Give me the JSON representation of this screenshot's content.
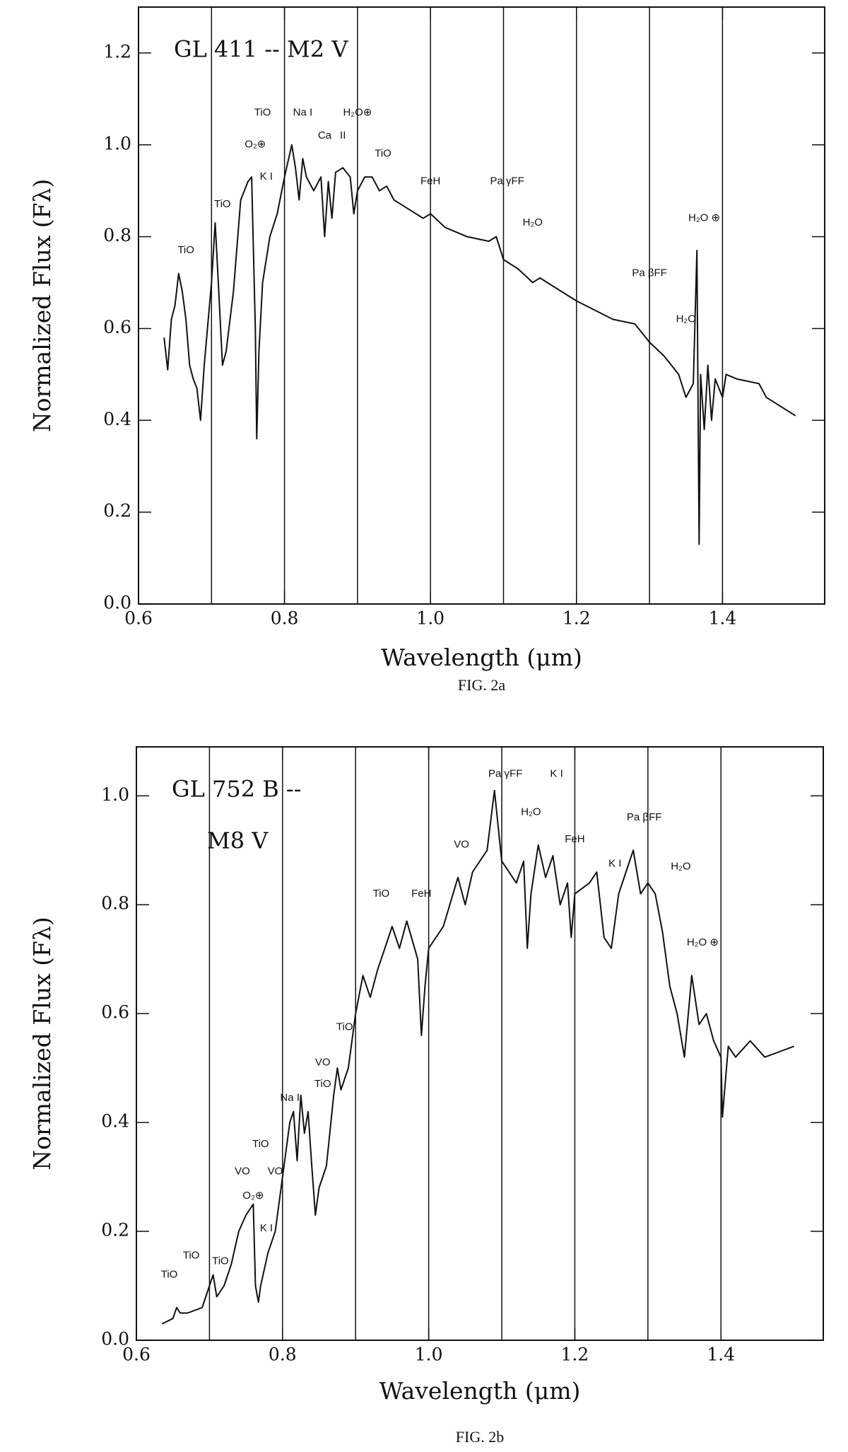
{
  "chart_data": [
    {
      "type": "line",
      "title": "GL 411 -- M2 V",
      "xlabel": "Wavelength (μm)",
      "ylabel": "Normalized Flux (Fλ)",
      "caption": "FIG. 2a",
      "xlim": [
        0.6,
        1.54
      ],
      "ylim": [
        0,
        1.3
      ],
      "xticks": [
        0.6,
        0.8,
        {
          "value": 1.0,
          "label": "1.0"
        },
        1.2,
        1.4
      ],
      "yticks": [
        {
          "value": 0,
          "label": "0.0"
        },
        0.2,
        0.4,
        0.6,
        0.8,
        {
          "value": 1.0,
          "label": "1.0"
        },
        1.2
      ],
      "xgrid": [
        0.7,
        0.8,
        0.9,
        1.0,
        1.1,
        1.2,
        1.3,
        1.4
      ],
      "series": [
        {
          "name": "GL 411",
          "color": "#111111",
          "x": [
            0.635,
            0.64,
            0.645,
            0.65,
            0.655,
            0.66,
            0.665,
            0.67,
            0.675,
            0.68,
            0.685,
            0.69,
            0.7,
            0.705,
            0.71,
            0.715,
            0.72,
            0.73,
            0.74,
            0.75,
            0.755,
            0.76,
            0.762,
            0.765,
            0.77,
            0.78,
            0.79,
            0.8,
            0.81,
            0.815,
            0.82,
            0.825,
            0.83,
            0.84,
            0.85,
            0.855,
            0.86,
            0.865,
            0.87,
            0.88,
            0.89,
            0.895,
            0.9,
            0.91,
            0.92,
            0.93,
            0.94,
            0.95,
            0.97,
            0.99,
            1.0,
            1.02,
            1.05,
            1.08,
            1.09,
            1.1,
            1.12,
            1.14,
            1.15,
            1.2,
            1.25,
            1.28,
            1.3,
            1.32,
            1.34,
            1.35,
            1.36,
            1.365,
            1.368,
            1.37,
            1.375,
            1.38,
            1.385,
            1.39,
            1.4,
            1.405,
            1.42,
            1.45,
            1.46,
            1.48,
            1.5
          ],
          "values": [
            0.58,
            0.51,
            0.62,
            0.65,
            0.72,
            0.68,
            0.62,
            0.52,
            0.49,
            0.47,
            0.4,
            0.52,
            0.7,
            0.83,
            0.68,
            0.52,
            0.55,
            0.68,
            0.88,
            0.92,
            0.93,
            0.6,
            0.36,
            0.55,
            0.7,
            0.8,
            0.85,
            0.93,
            1.0,
            0.95,
            0.88,
            0.97,
            0.93,
            0.9,
            0.93,
            0.8,
            0.92,
            0.84,
            0.94,
            0.95,
            0.93,
            0.85,
            0.9,
            0.93,
            0.93,
            0.9,
            0.91,
            0.88,
            0.86,
            0.84,
            0.85,
            0.82,
            0.8,
            0.79,
            0.8,
            0.75,
            0.73,
            0.7,
            0.71,
            0.66,
            0.62,
            0.61,
            0.57,
            0.54,
            0.5,
            0.45,
            0.48,
            0.77,
            0.13,
            0.5,
            0.38,
            0.52,
            0.4,
            0.49,
            0.45,
            0.5,
            0.49,
            0.48,
            0.45,
            0.43,
            0.41
          ]
        }
      ],
      "annotations": [
        {
          "text": "TiO",
          "x": 0.665,
          "y": 0.77
        },
        {
          "text": "TiO",
          "x": 0.715,
          "y": 0.87
        },
        {
          "text": "K  I",
          "x": 0.775,
          "y": 0.93
        },
        {
          "text": "O₂⊕",
          "x": 0.76,
          "y": 1.0
        },
        {
          "text": "TiO",
          "x": 0.77,
          "y": 1.07
        },
        {
          "text": "Na  I",
          "x": 0.825,
          "y": 1.07
        },
        {
          "text": "Ca",
          "x": 0.855,
          "y": 1.02
        },
        {
          "text": "II",
          "x": 0.88,
          "y": 1.02
        },
        {
          "text": "H₂O⊕",
          "x": 0.9,
          "y": 1.07
        },
        {
          "text": "TiO",
          "x": 0.935,
          "y": 0.98
        },
        {
          "text": "FeH",
          "x": 1.0,
          "y": 0.92
        },
        {
          "text": "Pa  γFF",
          "x": 1.105,
          "y": 0.92
        },
        {
          "text": "H₂O",
          "x": 1.14,
          "y": 0.83
        },
        {
          "text": "Pa  βFF",
          "x": 1.3,
          "y": 0.72
        },
        {
          "text": "H₂O",
          "x": 1.35,
          "y": 0.62
        },
        {
          "text": "H₂O ⊕",
          "x": 1.375,
          "y": 0.84
        }
      ]
    },
    {
      "type": "line",
      "title": "GL 752 B --",
      "subtitle": "M8 V",
      "xlabel": "Wavelength (μm)",
      "ylabel": "Normalized Flux (Fλ)",
      "caption": "FIG. 2b",
      "xlim": [
        0.6,
        1.54
      ],
      "ylim": [
        0,
        1.09
      ],
      "xticks": [
        0.6,
        0.8,
        {
          "value": 1.0,
          "label": "1.0"
        },
        1.2,
        1.4
      ],
      "yticks": [
        {
          "value": 0,
          "label": "0.0"
        },
        0.2,
        0.4,
        0.6,
        0.8,
        {
          "value": 1.0,
          "label": "1.0"
        }
      ],
      "xgrid": [
        0.7,
        0.8,
        0.9,
        1.0,
        1.1,
        1.2,
        1.3,
        1.4
      ],
      "series": [
        {
          "name": "GL 752 B",
          "color": "#111111",
          "x": [
            0.635,
            0.65,
            0.655,
            0.66,
            0.67,
            0.69,
            0.7,
            0.705,
            0.71,
            0.72,
            0.73,
            0.74,
            0.75,
            0.76,
            0.763,
            0.767,
            0.77,
            0.78,
            0.79,
            0.8,
            0.81,
            0.815,
            0.82,
            0.825,
            0.83,
            0.835,
            0.84,
            0.845,
            0.85,
            0.86,
            0.87,
            0.875,
            0.88,
            0.89,
            0.9,
            0.91,
            0.92,
            0.93,
            0.94,
            0.95,
            0.96,
            0.97,
            0.985,
            0.99,
            0.995,
            1.0,
            1.02,
            1.04,
            1.05,
            1.06,
            1.08,
            1.09,
            1.1,
            1.11,
            1.12,
            1.13,
            1.135,
            1.14,
            1.15,
            1.16,
            1.17,
            1.18,
            1.19,
            1.195,
            1.2,
            1.22,
            1.23,
            1.24,
            1.25,
            1.26,
            1.27,
            1.28,
            1.29,
            1.3,
            1.31,
            1.32,
            1.33,
            1.34,
            1.35,
            1.36,
            1.37,
            1.38,
            1.39,
            1.4,
            1.402,
            1.41,
            1.42,
            1.44,
            1.46,
            1.48,
            1.5
          ],
          "values": [
            0.03,
            0.04,
            0.06,
            0.05,
            0.05,
            0.06,
            0.1,
            0.12,
            0.08,
            0.1,
            0.14,
            0.2,
            0.23,
            0.25,
            0.1,
            0.07,
            0.1,
            0.16,
            0.2,
            0.3,
            0.4,
            0.42,
            0.33,
            0.45,
            0.38,
            0.42,
            0.32,
            0.23,
            0.28,
            0.32,
            0.45,
            0.5,
            0.46,
            0.5,
            0.6,
            0.67,
            0.63,
            0.68,
            0.72,
            0.76,
            0.72,
            0.77,
            0.7,
            0.56,
            0.65,
            0.72,
            0.76,
            0.85,
            0.8,
            0.86,
            0.9,
            1.01,
            0.88,
            0.86,
            0.84,
            0.88,
            0.72,
            0.82,
            0.91,
            0.85,
            0.89,
            0.8,
            0.84,
            0.74,
            0.82,
            0.84,
            0.86,
            0.74,
            0.72,
            0.82,
            0.86,
            0.9,
            0.82,
            0.84,
            0.82,
            0.75,
            0.65,
            0.6,
            0.52,
            0.67,
            0.58,
            0.6,
            0.55,
            0.52,
            0.41,
            0.54,
            0.52,
            0.55,
            0.52,
            0.53,
            0.54
          ]
        }
      ],
      "annotations": [
        {
          "text": "TiO",
          "x": 0.645,
          "y": 0.12
        },
        {
          "text": "TiO",
          "x": 0.675,
          "y": 0.155
        },
        {
          "text": "TiO",
          "x": 0.715,
          "y": 0.145
        },
        {
          "text": "VO",
          "x": 0.745,
          "y": 0.31
        },
        {
          "text": "TiO",
          "x": 0.77,
          "y": 0.36
        },
        {
          "text": "VO",
          "x": 0.79,
          "y": 0.31
        },
        {
          "text": "O₂⊕",
          "x": 0.76,
          "y": 0.265
        },
        {
          "text": "K  I",
          "x": 0.778,
          "y": 0.205
        },
        {
          "text": "Na  I",
          "x": 0.81,
          "y": 0.445
        },
        {
          "text": "VO",
          "x": 0.855,
          "y": 0.51
        },
        {
          "text": "TiO",
          "x": 0.855,
          "y": 0.47
        },
        {
          "text": "TiO",
          "x": 0.885,
          "y": 0.575
        },
        {
          "text": "TiO",
          "x": 0.935,
          "y": 0.82
        },
        {
          "text": "FeH",
          "x": 0.99,
          "y": 0.82
        },
        {
          "text": "VO",
          "x": 1.045,
          "y": 0.91
        },
        {
          "text": "Pa  γFF",
          "x": 1.105,
          "y": 1.04
        },
        {
          "text": "H₂O",
          "x": 1.14,
          "y": 0.97
        },
        {
          "text": "K  I",
          "x": 1.175,
          "y": 1.04
        },
        {
          "text": "FeH",
          "x": 1.2,
          "y": 0.92
        },
        {
          "text": "K  I",
          "x": 1.255,
          "y": 0.875
        },
        {
          "text": "Pa  βFF",
          "x": 1.295,
          "y": 0.96
        },
        {
          "text": "H₂O",
          "x": 1.345,
          "y": 0.87
        },
        {
          "text": "H₂O ⊕",
          "x": 1.375,
          "y": 0.73
        }
      ]
    }
  ]
}
